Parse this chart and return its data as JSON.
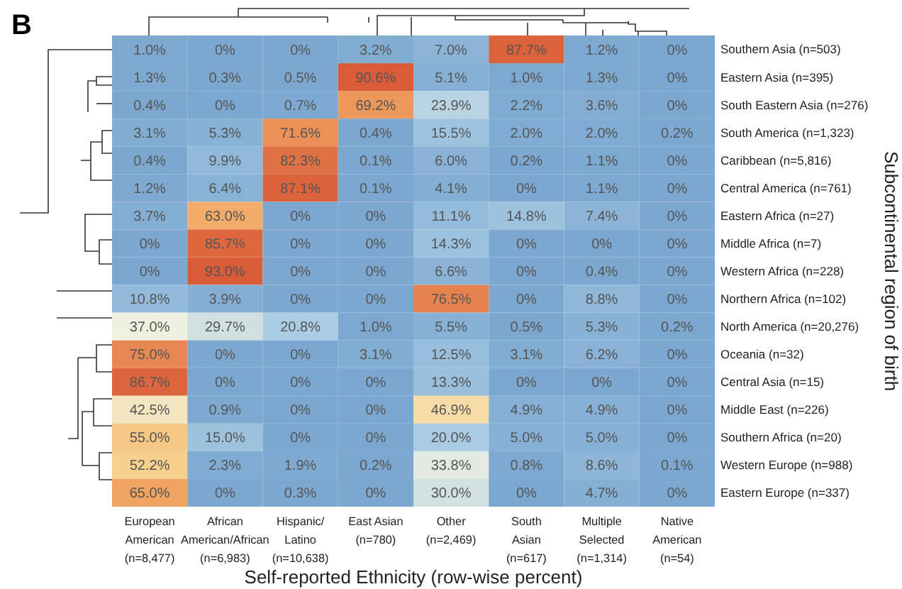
{
  "chart_data": {
    "type": "heatmap",
    "title": "B",
    "xlabel": "Self-reported Ethnicity (row-wise percent)",
    "ylabel": "Subcontinental region of birth",
    "categories": [
      "European\nAmerican\n(n=8,477)",
      "African\nAmerican/African\n(n=6,983)",
      "Hispanic/\nLatino\n(n=10,638)",
      "East Asian\n(n=780)",
      "Other\n(n=2,469)",
      "South\nAsian\n(n=617)",
      "Multiple\nSelected\n(n=1,314)",
      "Native\nAmerican\n(n=54)"
    ],
    "y_categories": [
      "Southern Asia (n=503)",
      "Eastern Asia (n=395)",
      "South Eastern Asia (n=276)",
      "South America (n=1,323)",
      "Caribbean (n=5,816)",
      "Central America (n=761)",
      "Eastern Africa (n=27)",
      "Middle Africa (n=7)",
      "Western Africa (n=228)",
      "Northern Africa (n=102)",
      "North America (n=20,276)",
      "Oceania (n=32)",
      "Central Asia (n=15)",
      "Middle East (n=226)",
      "Southern Africa (n=20)",
      "Western Europe (n=988)",
      "Eastern Europe (n=337)"
    ],
    "cells": [
      [
        1.0,
        0,
        0,
        3.2,
        7.0,
        87.7,
        1.2,
        0
      ],
      [
        1.3,
        0.3,
        0.5,
        90.6,
        5.1,
        1.0,
        1.3,
        0
      ],
      [
        0.4,
        0,
        0.7,
        69.2,
        23.9,
        2.2,
        3.6,
        0
      ],
      [
        3.1,
        5.3,
        71.6,
        0.4,
        15.5,
        2.0,
        2.0,
        0.2
      ],
      [
        0.4,
        9.9,
        82.3,
        0.1,
        6.0,
        0.2,
        1.1,
        0
      ],
      [
        1.2,
        6.4,
        87.1,
        0.1,
        4.1,
        0,
        1.1,
        0
      ],
      [
        3.7,
        63.0,
        0,
        0,
        11.1,
        14.8,
        7.4,
        0
      ],
      [
        0,
        85.7,
        0,
        0,
        14.3,
        0,
        0,
        0
      ],
      [
        0,
        93.0,
        0,
        0,
        6.6,
        0,
        0.4,
        0
      ],
      [
        10.8,
        3.9,
        0,
        0,
        76.5,
        0,
        8.8,
        0
      ],
      [
        37.0,
        29.7,
        20.8,
        1.0,
        5.5,
        0.5,
        5.3,
        0.2
      ],
      [
        75.0,
        0,
        0,
        3.1,
        12.5,
        3.1,
        6.2,
        0
      ],
      [
        86.7,
        0,
        0,
        0,
        13.3,
        0,
        0,
        0
      ],
      [
        42.5,
        0.9,
        0,
        0,
        46.9,
        4.9,
        4.9,
        0
      ],
      [
        55.0,
        15.0,
        0,
        0,
        20.0,
        5.0,
        5.0,
        0
      ],
      [
        52.2,
        2.3,
        1.9,
        0.2,
        33.8,
        0.8,
        8.6,
        0.1
      ],
      [
        65.0,
        0,
        0.3,
        0,
        30.0,
        0,
        4.7,
        0
      ]
    ],
    "cell_labels": [
      [
        "1.0%",
        "0%",
        "0%",
        "3.2%",
        "7.0%",
        "87.7%",
        "1.2%",
        "0%"
      ],
      [
        "1.3%",
        "0.3%",
        "0.5%",
        "90.6%",
        "5.1%",
        "1.0%",
        "1.3%",
        "0%"
      ],
      [
        "0.4%",
        "0%",
        "0.7%",
        "69.2%",
        "23.9%",
        "2.2%",
        "3.6%",
        "0%"
      ],
      [
        "3.1%",
        "5.3%",
        "71.6%",
        "0.4%",
        "15.5%",
        "2.0%",
        "2.0%",
        "0.2%"
      ],
      [
        "0.4%",
        "9.9%",
        "82.3%",
        "0.1%",
        "6.0%",
        "0.2%",
        "1.1%",
        "0%"
      ],
      [
        "1.2%",
        "6.4%",
        "87.1%",
        "0.1%",
        "4.1%",
        "0%",
        "1.1%",
        "0%"
      ],
      [
        "3.7%",
        "63.0%",
        "0%",
        "0%",
        "11.1%",
        "14.8%",
        "7.4%",
        "0%"
      ],
      [
        "0%",
        "85.7%",
        "0%",
        "0%",
        "14.3%",
        "0%",
        "0%",
        "0%"
      ],
      [
        "0%",
        "93.0%",
        "0%",
        "0%",
        "6.6%",
        "0%",
        "0.4%",
        "0%"
      ],
      [
        "10.8%",
        "3.9%",
        "0%",
        "0%",
        "76.5%",
        "0%",
        "8.8%",
        "0%"
      ],
      [
        "37.0%",
        "29.7%",
        "20.8%",
        "1.0%",
        "5.5%",
        "0.5%",
        "5.3%",
        "0.2%"
      ],
      [
        "75.0%",
        "0%",
        "0%",
        "3.1%",
        "12.5%",
        "3.1%",
        "6.2%",
        "0%"
      ],
      [
        "86.7%",
        "0%",
        "0%",
        "0%",
        "13.3%",
        "0%",
        "0%",
        "0%"
      ],
      [
        "42.5%",
        "0.9%",
        "0%",
        "0%",
        "46.9%",
        "4.9%",
        "4.9%",
        "0%"
      ],
      [
        "55.0%",
        "15.0%",
        "0%",
        "0%",
        "20.0%",
        "5.0%",
        "5.0%",
        "0%"
      ],
      [
        "52.2%",
        "2.3%",
        "1.9%",
        "0.2%",
        "33.8%",
        "0.8%",
        "8.6%",
        "0.1%"
      ],
      [
        "65.0%",
        "0%",
        "0.3%",
        "0%",
        "30.0%",
        "0%",
        "4.7%",
        "0%"
      ]
    ]
  }
}
